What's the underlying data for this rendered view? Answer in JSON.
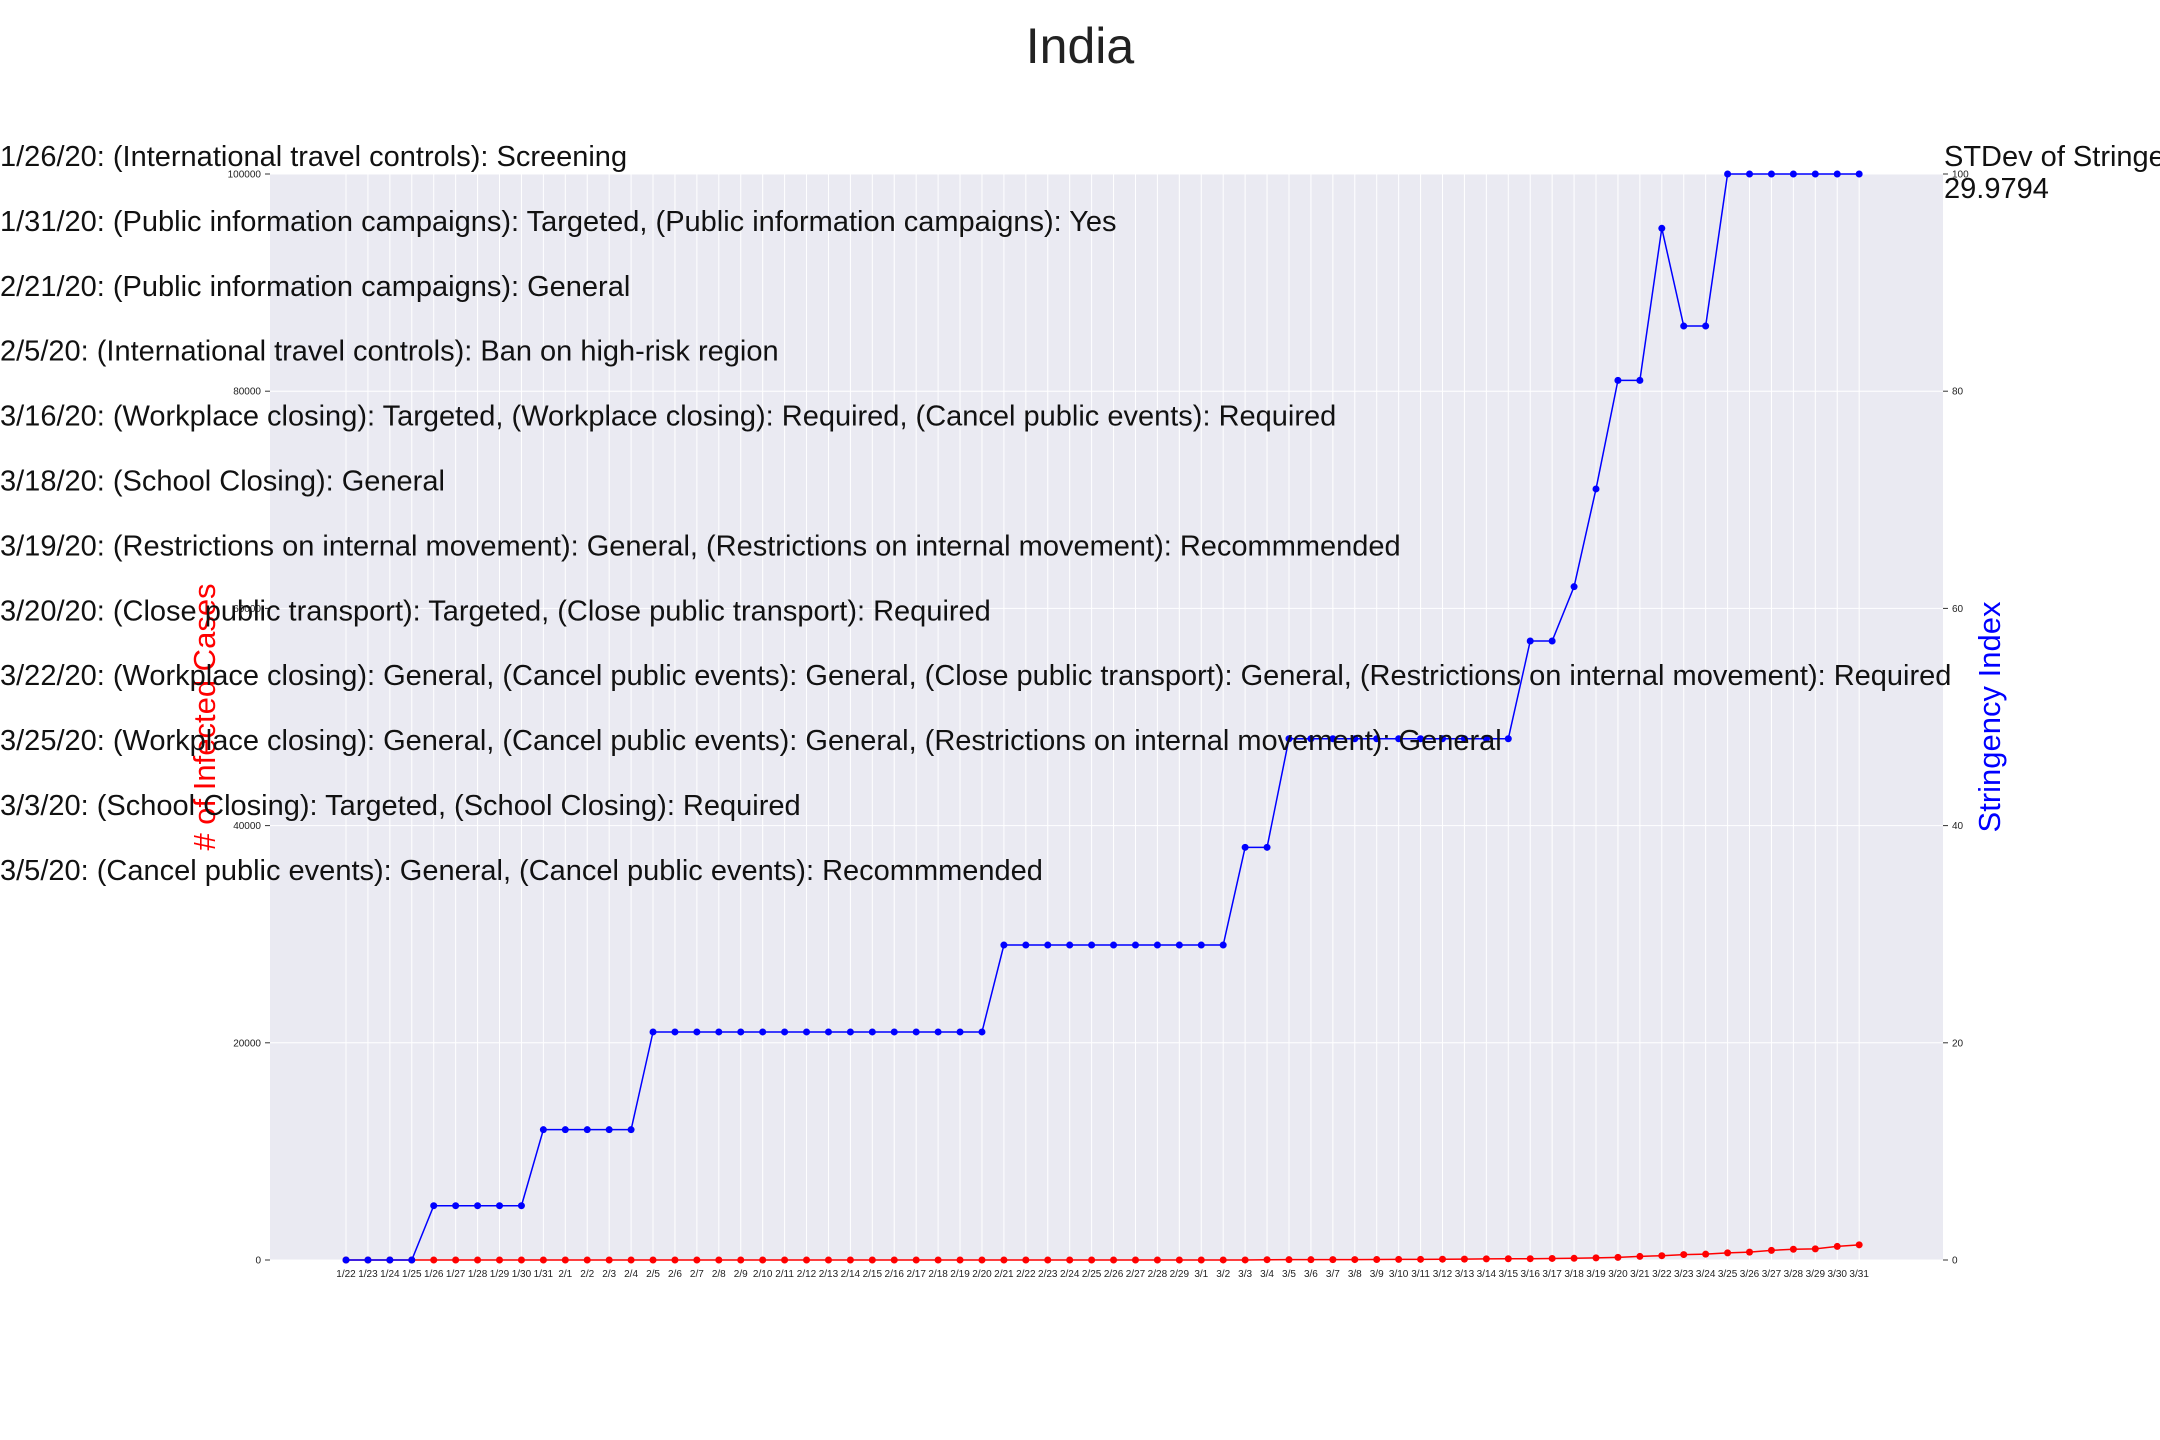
{
  "chart_data": {
    "type": "line",
    "title": "India",
    "ylabel_left": "# of Infected Cases",
    "ylabel_right": "Stringency Index",
    "ylim_left": [
      0,
      100000
    ],
    "ylim_right": [
      0,
      100
    ],
    "yticks_left": [
      "0",
      "20000",
      "40000",
      "60000",
      "80000",
      "100000"
    ],
    "yticks_right": [
      "0",
      "20",
      "40",
      "60",
      "80",
      "100"
    ],
    "grid": true,
    "categories": [
      "1/22",
      "1/23",
      "1/24",
      "1/25",
      "1/26",
      "1/27",
      "1/28",
      "1/29",
      "1/30",
      "1/31",
      "2/1",
      "2/2",
      "2/3",
      "2/4",
      "2/5",
      "2/6",
      "2/7",
      "2/8",
      "2/9",
      "2/10",
      "2/11",
      "2/12",
      "2/13",
      "2/14",
      "2/15",
      "2/16",
      "2/17",
      "2/18",
      "2/19",
      "2/20",
      "2/21",
      "2/22",
      "2/23",
      "2/24",
      "2/25",
      "2/26",
      "2/27",
      "2/28",
      "2/29",
      "3/1",
      "3/2",
      "3/3",
      "3/4",
      "3/5",
      "3/6",
      "3/7",
      "3/8",
      "3/9",
      "3/10",
      "3/11",
      "3/12",
      "3/13",
      "3/14",
      "3/15",
      "3/16",
      "3/17",
      "3/18",
      "3/19",
      "3/20",
      "3/21",
      "3/22",
      "3/23",
      "3/24",
      "3/25",
      "3/26",
      "3/27",
      "3/28",
      "3/29",
      "3/30",
      "3/31"
    ],
    "series": [
      {
        "axis": "left",
        "color": "#ff0000",
        "values": [
          0,
          0,
          0,
          0,
          0,
          0,
          0,
          0,
          1,
          1,
          1,
          2,
          3,
          3,
          3,
          3,
          3,
          3,
          3,
          3,
          3,
          3,
          3,
          3,
          3,
          3,
          3,
          3,
          3,
          3,
          3,
          3,
          3,
          3,
          3,
          3,
          3,
          3,
          3,
          3,
          5,
          5,
          28,
          30,
          31,
          34,
          39,
          43,
          56,
          62,
          73,
          82,
          102,
          113,
          119,
          142,
          156,
          194,
          244,
          330,
          396,
          499,
          536,
          657,
          727,
          887,
          987,
          1024,
          1251,
          1397
        ]
      },
      {
        "axis": "right",
        "color": "#0000ff",
        "values": [
          0,
          0,
          0,
          0,
          5,
          5,
          5,
          5,
          5,
          12,
          12,
          12,
          12,
          12,
          21,
          21,
          21,
          21,
          21,
          21,
          21,
          21,
          21,
          21,
          21,
          21,
          21,
          21,
          21,
          21,
          29,
          29,
          29,
          29,
          29,
          29,
          29,
          29,
          29,
          29,
          29,
          38,
          38,
          48,
          48,
          48,
          48,
          48,
          48,
          48,
          48,
          48,
          48,
          48,
          57,
          57,
          62,
          71,
          81,
          81,
          95,
          86,
          86,
          100,
          100,
          100,
          100,
          100,
          100,
          100
        ]
      }
    ],
    "annotations": [
      "1/26/20: (International travel controls): Screening",
      "1/31/20: (Public information campaigns): Targeted, (Public information campaigns): Yes",
      "2/21/20: (Public information campaigns): General",
      "2/5/20: (International travel controls): Ban on high-risk region",
      "3/16/20: (Workplace closing): Targeted, (Workplace closing): Required, (Cancel public events): Required",
      "3/18/20: (School Closing): General",
      "3/19/20: (Restrictions on internal movement): General, (Restrictions on internal movement): Recommmended",
      "3/20/20: (Close public transport): Targeted, (Close public transport): Required",
      "3/22/20: (Workplace closing): General, (Cancel public events): General, (Close public transport): General, (Restrictions on internal movement): Required",
      "3/25/20: (Workplace closing): General, (Cancel public events): General, (Restrictions on internal movement): General",
      "3/3/20: (School Closing): Targeted, (School Closing): Required",
      "3/5/20: (Cancel public events): General, (Cancel public events): Recommmended"
    ],
    "stdev_label": "STDev of Stringency Index",
    "stdev_value": "29.9794"
  }
}
